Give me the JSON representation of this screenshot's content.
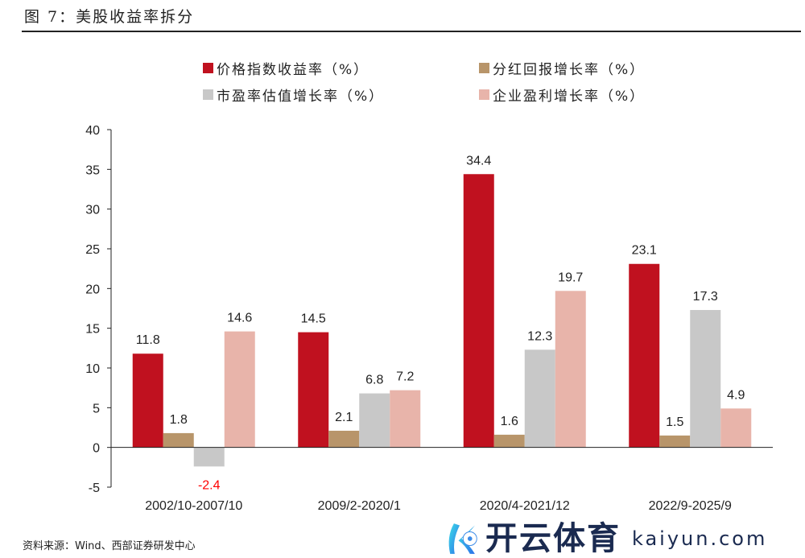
{
  "title": "图 7：美股收益率拆分",
  "source": "资料来源：Wind、西部证券研发中心",
  "watermark": {
    "cn": "开云体育",
    "en": "kaiyun.com"
  },
  "chart_data": {
    "type": "bar",
    "categories": [
      "2002/10-2007/10",
      "2009/2-2020/1",
      "2020/4-2021/12",
      "2022/9-2025/9"
    ],
    "series": [
      {
        "name": "价格指数收益率（%）",
        "color": "#C0111F",
        "values": [
          11.8,
          14.5,
          34.4,
          23.1
        ]
      },
      {
        "name": "分红回报增长率（%）",
        "color": "#B8956A",
        "values": [
          1.8,
          2.1,
          1.6,
          1.5
        ]
      },
      {
        "name": "市盈率估值增长率（%）",
        "color": "#C8C8C8",
        "values": [
          -2.4,
          6.8,
          12.3,
          17.3
        ]
      },
      {
        "name": "企业盈利增长率（%）",
        "color": "#E8B4AA",
        "values": [
          14.6,
          7.2,
          19.7,
          4.9
        ]
      }
    ],
    "ylim": [
      -5,
      40
    ],
    "yticks": [
      -5,
      0,
      5,
      10,
      15,
      20,
      25,
      30,
      35,
      40
    ],
    "negative_label_color": "#FF0000",
    "legend": "top"
  }
}
